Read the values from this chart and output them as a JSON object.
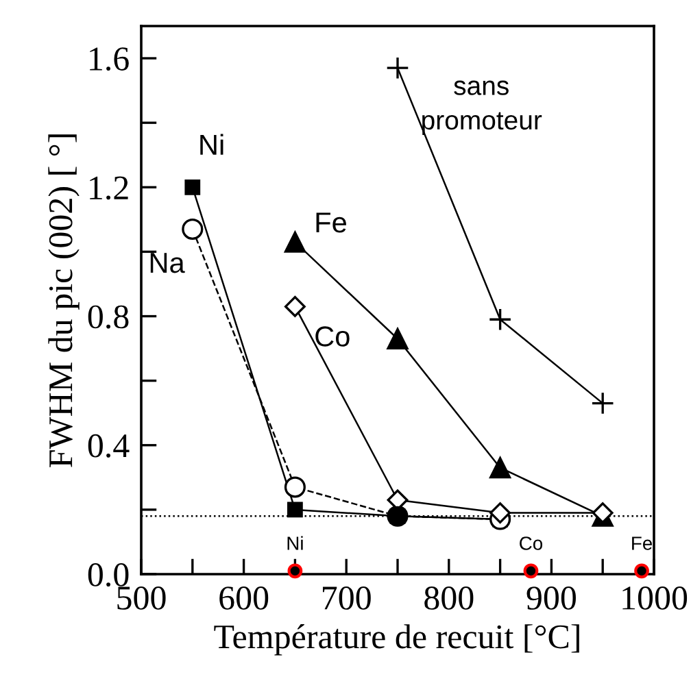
{
  "chart_data": {
    "type": "line",
    "xlabel": "Température de recuit [°C]",
    "ylabel": "FWHM du pic (002) [ °]",
    "xlim": [
      500,
      1000
    ],
    "ylim": [
      0,
      1.7
    ],
    "xticks": [
      500,
      {
        "value": 550,
        "label": null
      },
      600,
      {
        "value": 650,
        "label": null
      },
      700,
      {
        "value": 750,
        "label": null
      },
      800,
      {
        "value": 850,
        "label": null
      },
      900,
      {
        "value": 950,
        "label": null
      },
      1000
    ],
    "yticks": [
      "0.0",
      {
        "value": 0.2,
        "label": null
      },
      {
        "value": 0.4,
        "label": "0.4"
      },
      {
        "value": 0.6,
        "label": null
      },
      {
        "value": 0.8,
        "label": "0.8"
      },
      {
        "value": 1.0,
        "label": null
      },
      {
        "value": 1.2,
        "label": "1.2"
      },
      {
        "value": 1.4,
        "label": null
      },
      {
        "value": 1.6,
        "label": "1.6"
      }
    ],
    "series": [
      {
        "name": "Ni",
        "color": "#000000",
        "x": [
          550,
          650,
          750,
          850
        ],
        "values": [
          1.2,
          0.2,
          0.18,
          0.17
        ],
        "marker": "square",
        "line_style": "solid"
      },
      {
        "name": "Na",
        "color": "#000000",
        "x": [
          550,
          650,
          750,
          850
        ],
        "values": [
          1.07,
          0.27,
          0.18,
          0.17
        ],
        "marker": "circle",
        "line_style": "dashed"
      },
      {
        "name": "Fe",
        "color": "#000000",
        "x": [
          650,
          750,
          850,
          950
        ],
        "values": [
          1.03,
          0.73,
          0.33,
          0.18
        ],
        "marker": "triangle",
        "line_style": "solid"
      },
      {
        "name": "Co",
        "color": "#000000",
        "x": [
          650,
          750,
          850,
          950
        ],
        "values": [
          0.83,
          0.23,
          0.19,
          0.19
        ],
        "marker": "diamond",
        "line_style": "solid"
      },
      {
        "name": "sans promoteur",
        "color": "#000000",
        "x": [
          750,
          850,
          950
        ],
        "values": [
          1.57,
          0.79,
          0.53
        ],
        "marker": "cross",
        "line_style": "solid"
      },
      {
        "type": "scatter",
        "color": "#000000",
        "x": [
          750
        ],
        "values": [
          0.18
        ],
        "marker": "circle"
      },
      {
        "type": "scatter",
        "color": "#000000",
        "x": [
          650,
          880,
          988
        ],
        "values": [
          0.01,
          0.01,
          0.01
        ],
        "marker": "circle"
      }
    ],
    "annotations": [
      {
        "text": "Ni",
        "x": 650,
        "y": 0.01
      },
      {
        "text": "Co",
        "x": 880,
        "y": 0.01
      },
      {
        "text": "Fe",
        "x": 988,
        "y": 0.01
      }
    ],
    "ref_lines": [
      {
        "axis": "y",
        "value": 0.18,
        "line_style": "dotted",
        "color": "#000000"
      }
    ],
    "grid": false,
    "legend": false
  }
}
